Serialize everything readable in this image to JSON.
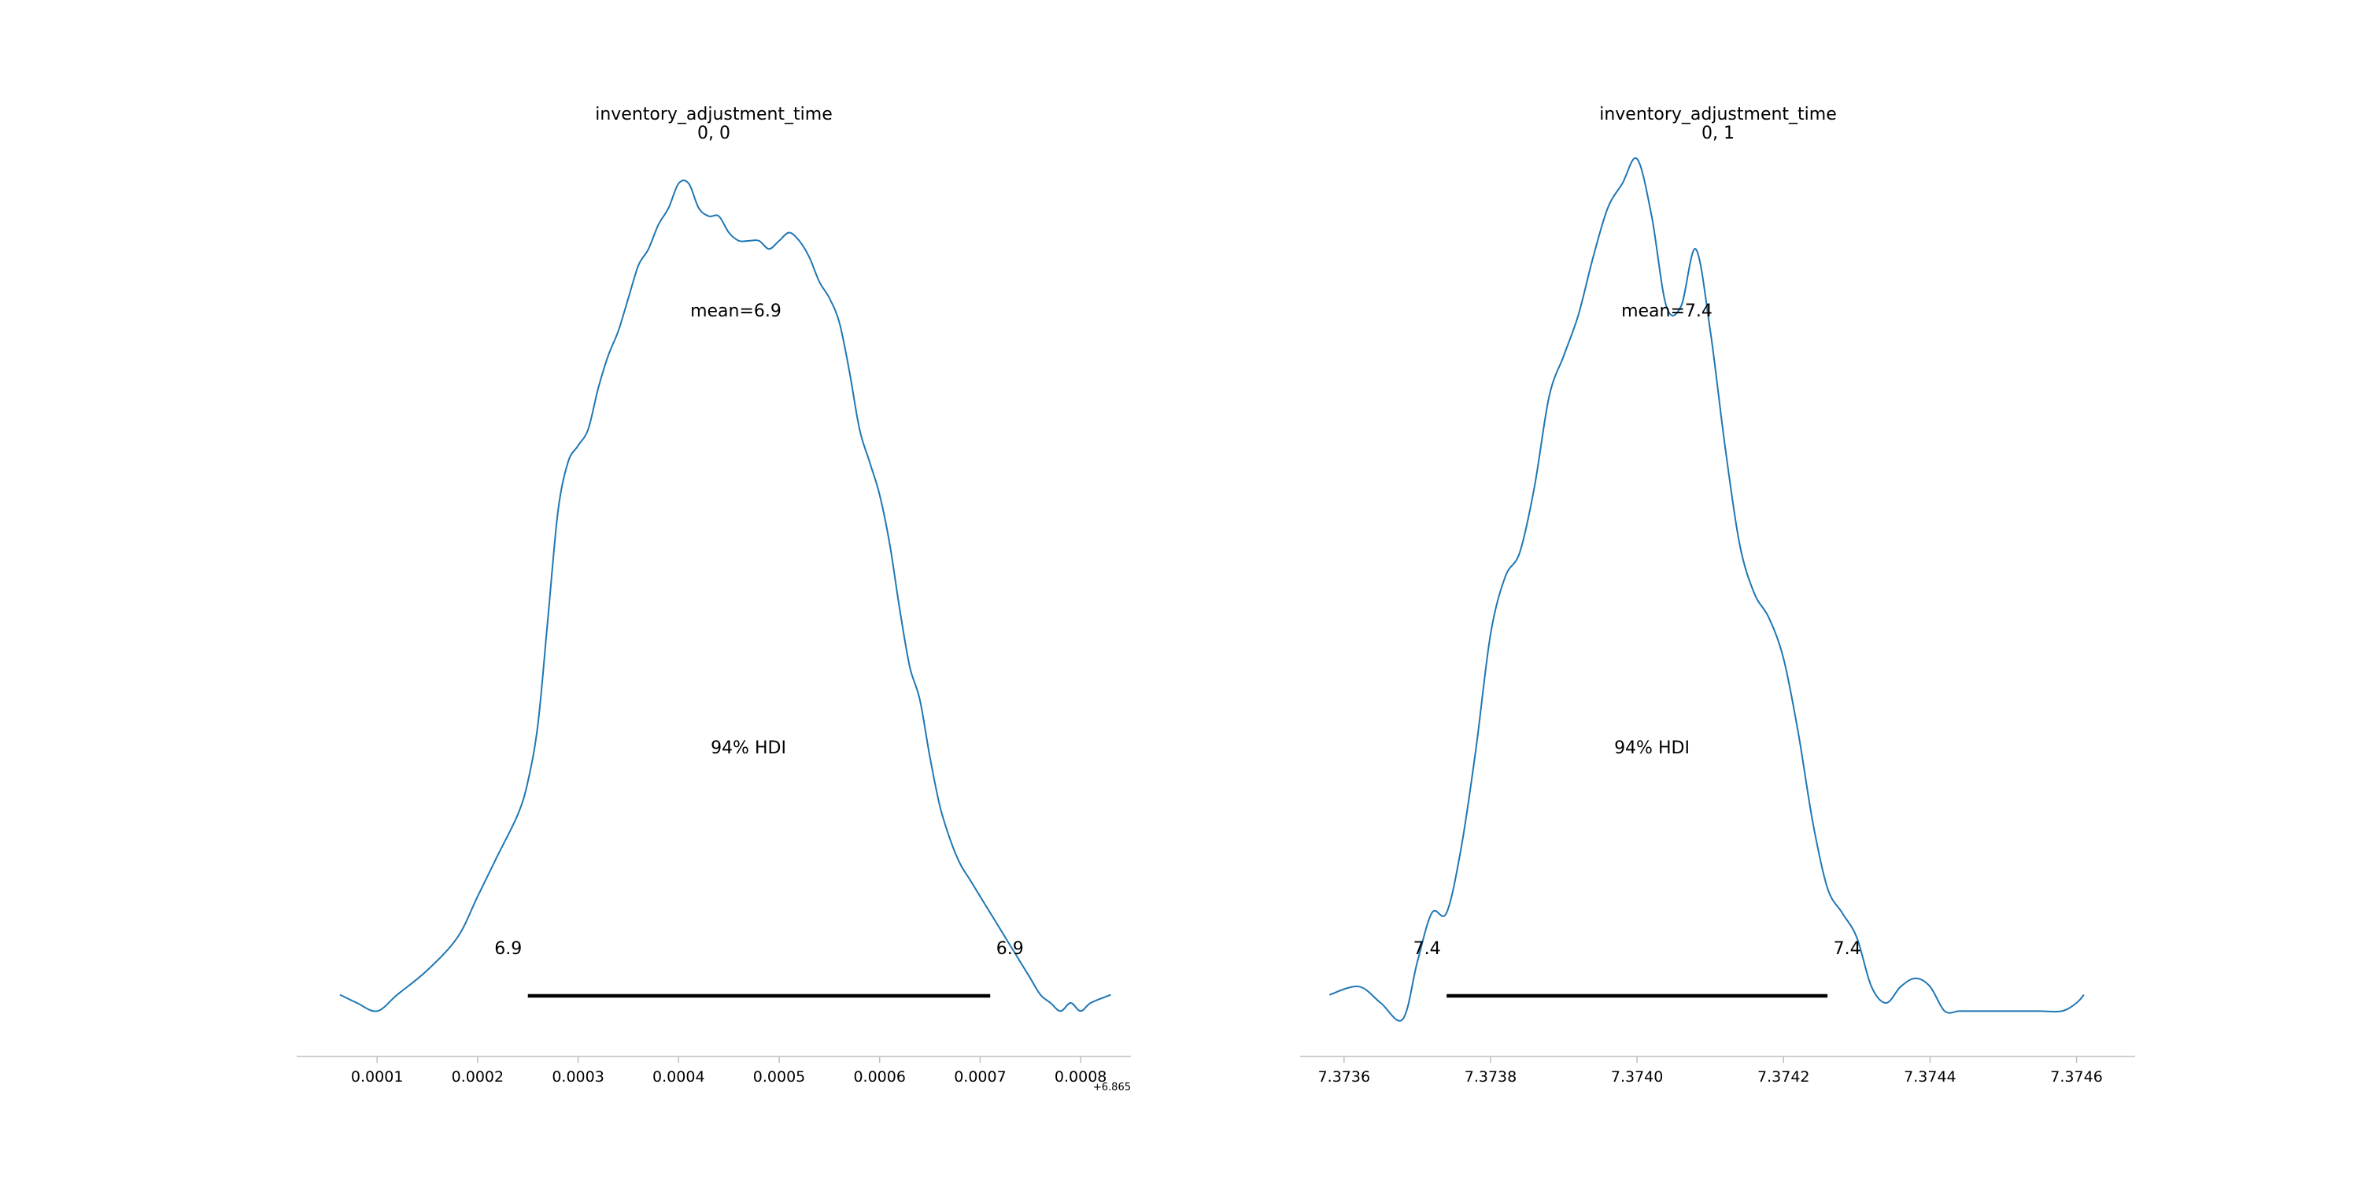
{
  "colors": {
    "kde_line": "#1f77b4",
    "hdi_bar": "#000000",
    "axis": "#bfbfbf"
  },
  "chart_data": [
    {
      "type": "line",
      "title": [
        "inventory_adjustment_time",
        "0, 0"
      ],
      "mean_label": "mean=6.9",
      "hdi_label": "94% HDI",
      "hdi_low_label": "6.9",
      "hdi_high_label": "6.9",
      "hdi": [
        0.00025,
        0.00071
      ],
      "axis_offset_label": "+6.865",
      "xlim": [
        2e-05,
        0.00085
      ],
      "ylim": [
        0,
        1
      ],
      "xticks": [
        0.0001,
        0.0002,
        0.0003,
        0.0004,
        0.0005,
        0.0006,
        0.0007,
        0.0008
      ],
      "xtick_labels": [
        "0.0001",
        "0.0002",
        "0.0003",
        "0.0004",
        "0.0005",
        "0.0006",
        "0.0007",
        "0.0008"
      ],
      "density": {
        "x": [
          6.3e-05,
          8e-05,
          0.0001,
          0.00012,
          0.00015,
          0.00018,
          0.0002,
          0.00022,
          0.00024,
          0.00025,
          0.00026,
          0.00027,
          0.00028,
          0.00029,
          0.0003,
          0.00031,
          0.00032,
          0.00033,
          0.00034,
          0.00035,
          0.00036,
          0.00037,
          0.00038,
          0.00039,
          0.0004,
          0.00041,
          0.00042,
          0.00043,
          0.00044,
          0.00045,
          0.00046,
          0.00047,
          0.00048,
          0.00049,
          0.0005,
          0.00051,
          0.00052,
          0.00053,
          0.00054,
          0.00055,
          0.00056,
          0.00057,
          0.00058,
          0.00059,
          0.0006,
          0.00061,
          0.00062,
          0.00063,
          0.00064,
          0.00065,
          0.00066,
          0.00067,
          0.00068,
          0.00069,
          0.0007,
          0.00071,
          0.00072,
          0.00073,
          0.00074,
          0.00075,
          0.00076,
          0.00077,
          0.00078,
          0.00079,
          0.0008,
          0.00081,
          0.00083
        ],
        "y": [
          0.01,
          0.0,
          -0.01,
          0.01,
          0.04,
          0.08,
          0.13,
          0.18,
          0.23,
          0.27,
          0.34,
          0.47,
          0.6,
          0.66,
          0.68,
          0.7,
          0.75,
          0.79,
          0.82,
          0.86,
          0.9,
          0.92,
          0.95,
          0.97,
          1.0,
          1.0,
          0.97,
          0.96,
          0.96,
          0.94,
          0.93,
          0.93,
          0.93,
          0.92,
          0.93,
          0.94,
          0.93,
          0.91,
          0.88,
          0.86,
          0.83,
          0.77,
          0.7,
          0.66,
          0.62,
          0.56,
          0.48,
          0.41,
          0.37,
          0.3,
          0.24,
          0.2,
          0.17,
          0.15,
          0.13,
          0.11,
          0.09,
          0.07,
          0.05,
          0.03,
          0.01,
          0.0,
          -0.01,
          0.0,
          -0.01,
          0.0,
          0.01
        ]
      }
    },
    {
      "type": "line",
      "title": [
        "inventory_adjustment_time",
        "0, 1"
      ],
      "mean_label": "mean=7.4",
      "hdi_label": "94% HDI",
      "hdi_low_label": "7.4",
      "hdi_high_label": "7.4",
      "hdi": [
        7.37374,
        7.37426
      ],
      "axis_offset_label": "",
      "xlim": [
        7.37354,
        7.37468
      ],
      "ylim": [
        0,
        1
      ],
      "xticks": [
        7.3736,
        7.3738,
        7.374,
        7.3742,
        7.3744,
        7.3746
      ],
      "xtick_labels": [
        "7.3736",
        "7.3738",
        "7.3740",
        "7.3742",
        "7.3744",
        "7.3746"
      ],
      "density": {
        "x": [
          7.37358,
          7.37362,
          7.37365,
          7.37368,
          7.3737,
          7.37372,
          7.37374,
          7.37376,
          7.37378,
          7.3738,
          7.37382,
          7.37384,
          7.37386,
          7.37388,
          7.3739,
          7.37392,
          7.37394,
          7.37396,
          7.37398,
          7.374,
          7.37402,
          7.37404,
          7.37406,
          7.37408,
          7.3741,
          7.37412,
          7.37414,
          7.37416,
          7.37418,
          7.3742,
          7.37422,
          7.37424,
          7.37426,
          7.37428,
          7.3743,
          7.37432,
          7.37434,
          7.37436,
          7.37438,
          7.3744,
          7.37442,
          7.37444,
          7.37446,
          7.37448,
          7.3745,
          7.37452,
          7.37455,
          7.37458,
          7.3746,
          7.37461
        ],
        "y": [
          0.01,
          0.02,
          0.0,
          -0.02,
          0.05,
          0.11,
          0.11,
          0.19,
          0.31,
          0.45,
          0.52,
          0.55,
          0.63,
          0.74,
          0.79,
          0.84,
          0.91,
          0.97,
          1.0,
          1.03,
          0.96,
          0.85,
          0.85,
          0.92,
          0.82,
          0.68,
          0.56,
          0.5,
          0.47,
          0.42,
          0.33,
          0.22,
          0.14,
          0.11,
          0.08,
          0.02,
          0.0,
          0.02,
          0.03,
          0.02,
          -0.01,
          -0.01,
          -0.01,
          -0.01,
          -0.01,
          -0.01,
          -0.01,
          -0.01,
          0.0,
          0.01
        ]
      }
    }
  ]
}
